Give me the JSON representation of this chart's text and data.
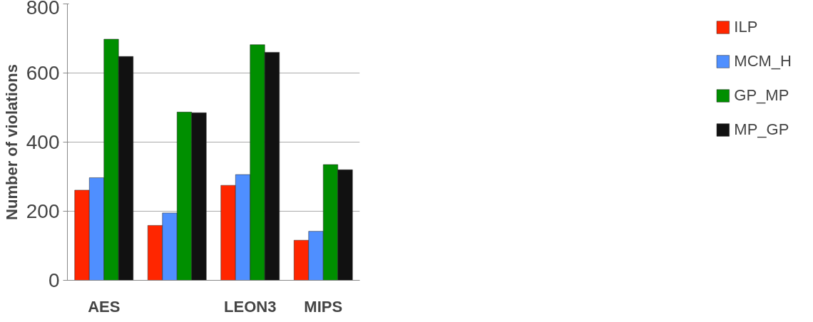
{
  "chart_data": {
    "type": "bar",
    "ylabel": "Number of violations",
    "categories": [
      "AES",
      null,
      "LEON3",
      "MIPS"
    ],
    "series": [
      {
        "name": "ILP",
        "color": "#ff2600",
        "values": [
          261,
          159,
          275,
          116
        ]
      },
      {
        "name": "MCM_H",
        "color": "#4f8fff",
        "values": [
          297,
          195,
          306,
          142
        ]
      },
      {
        "name": "GP_MP",
        "color": "#008f00",
        "values": [
          698,
          487,
          682,
          335
        ]
      },
      {
        "name": "MP_GP",
        "color": "#111111",
        "values": [
          648,
          485,
          660,
          320
        ]
      }
    ],
    "ylim": [
      0,
      800
    ],
    "yticks": [
      0,
      200,
      400,
      600,
      800
    ],
    "grid": "y",
    "legend": "right"
  }
}
